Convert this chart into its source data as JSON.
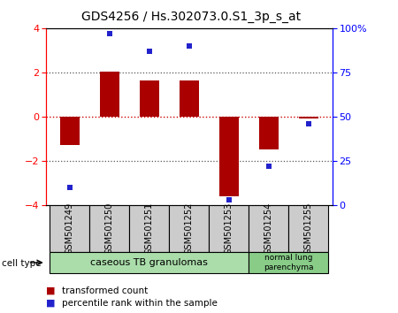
{
  "title": "GDS4256 / Hs.302073.0.S1_3p_s_at",
  "samples": [
    "GSM501249",
    "GSM501250",
    "GSM501251",
    "GSM501252",
    "GSM501253",
    "GSM501254",
    "GSM501255"
  ],
  "transformed_counts": [
    -1.3,
    2.05,
    1.65,
    1.65,
    -3.6,
    -1.5,
    -0.1
  ],
  "percentile_ranks": [
    10,
    97,
    87,
    90,
    3,
    22,
    46
  ],
  "ylim": [
    -4,
    4
  ],
  "percentile_ylim": [
    0,
    100
  ],
  "bar_color": "#aa0000",
  "dot_color": "#2222cc",
  "dotted_line_color": "#555555",
  "zero_line_color": "#cc0000",
  "yticks_left": [
    -4,
    -2,
    0,
    2,
    4
  ],
  "yticks_right": [
    0,
    25,
    50,
    75,
    100
  ],
  "cell_type_label": "cell type",
  "group1_label": "caseous TB granulomas",
  "group1_color": "#aaddaa",
  "group1_n": 5,
  "group2_label": "normal lung\nparenchyma",
  "group2_color": "#88cc88",
  "group2_n": 2,
  "legend_red_label": "transformed count",
  "legend_blue_label": "percentile rank within the sample",
  "bg_color": "#ffffff",
  "sample_box_color": "#cccccc"
}
